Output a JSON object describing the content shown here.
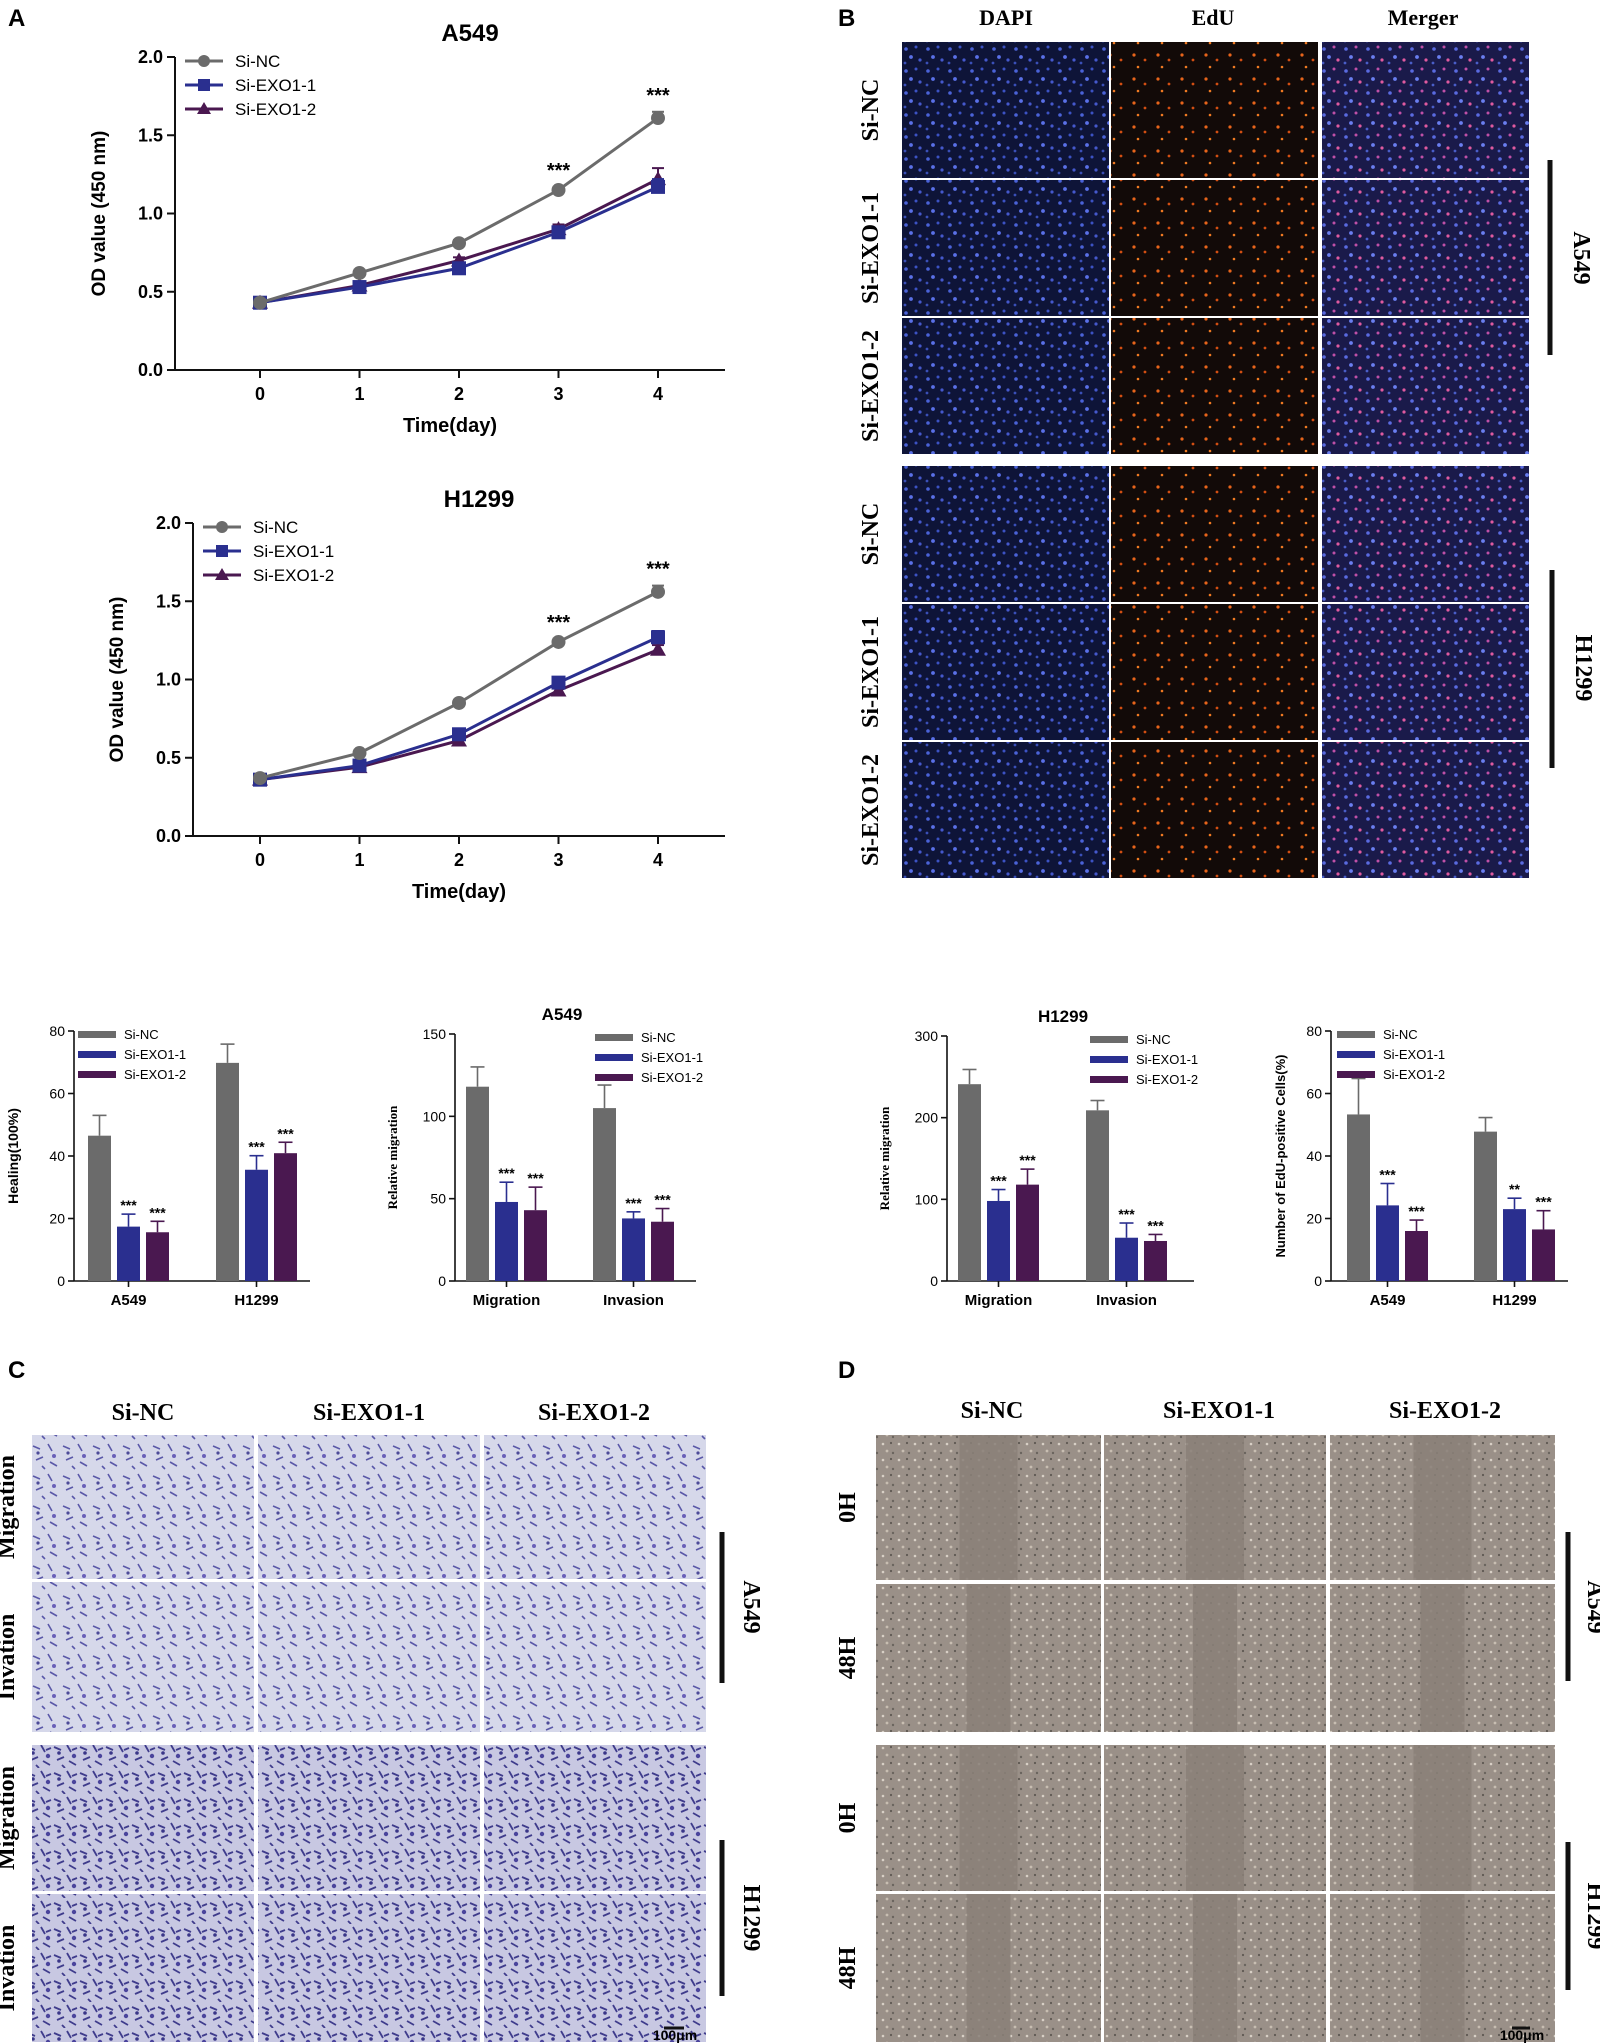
{
  "panel_letters": {
    "a": "A",
    "b": "B",
    "c": "C",
    "d": "D"
  },
  "colors": {
    "si_nc": "#6b6b6b",
    "si_exo1_1": "#2a2f8f",
    "si_exo1_2": "#4a1850",
    "axis": "#111111"
  },
  "legend_labels": [
    "Si-NC",
    "Si-EXO1-1",
    "Si-EXO1-2"
  ],
  "significance": {
    "three": "***",
    "two": "**"
  },
  "chart_data": [
    {
      "id": "growth-a549",
      "type": "line",
      "title": "A549",
      "xlabel": "Time(day)",
      "ylabel": "OD value (450 nm)",
      "x": [
        0,
        1,
        2,
        3,
        4
      ],
      "ylim": [
        0,
        2.0
      ],
      "yticks": [
        "0.0",
        "0.5",
        "1.0",
        "1.5",
        "2.0"
      ],
      "legend": "top-left",
      "series": [
        {
          "name": "Si-NC",
          "marker": "circle",
          "values": [
            0.43,
            0.62,
            0.81,
            1.15,
            1.61
          ],
          "errors": [
            0.02,
            0.02,
            0.02,
            0.02,
            0.04
          ]
        },
        {
          "name": "Si-EXO1-1",
          "marker": "square",
          "values": [
            0.43,
            0.53,
            0.65,
            0.88,
            1.17
          ],
          "errors": [
            0.02,
            0.02,
            0.02,
            0.03,
            0.05
          ]
        },
        {
          "name": "Si-EXO1-2",
          "marker": "triangle",
          "values": [
            0.43,
            0.54,
            0.7,
            0.9,
            1.22
          ],
          "errors": [
            0.02,
            0.02,
            0.02,
            0.03,
            0.07
          ]
        }
      ],
      "annotations": [
        {
          "x": 3,
          "text": "***"
        },
        {
          "x": 4,
          "text": "***"
        }
      ]
    },
    {
      "id": "growth-h1299",
      "type": "line",
      "title": "H1299",
      "xlabel": "Time(day)",
      "ylabel": "OD value (450 nm)",
      "x": [
        0,
        1,
        2,
        3,
        4
      ],
      "ylim": [
        0,
        2.0
      ],
      "yticks": [
        "0.0",
        "0.5",
        "1.0",
        "1.5",
        "2.0"
      ],
      "legend": "top-left",
      "series": [
        {
          "name": "Si-NC",
          "marker": "circle",
          "values": [
            0.37,
            0.53,
            0.85,
            1.24,
            1.56
          ],
          "errors": [
            0.02,
            0.02,
            0.02,
            0.02,
            0.04
          ]
        },
        {
          "name": "Si-EXO1-1",
          "marker": "square",
          "values": [
            0.36,
            0.45,
            0.65,
            0.98,
            1.27
          ],
          "errors": [
            0.02,
            0.02,
            0.02,
            0.02,
            0.04
          ]
        },
        {
          "name": "Si-EXO1-2",
          "marker": "triangle",
          "values": [
            0.36,
            0.44,
            0.61,
            0.93,
            1.19
          ],
          "errors": [
            0.02,
            0.02,
            0.02,
            0.02,
            0.03
          ]
        }
      ],
      "annotations": [
        {
          "x": 3,
          "text": "***"
        },
        {
          "x": 4,
          "text": "***"
        }
      ]
    },
    {
      "id": "bar-healing",
      "type": "bar",
      "title": "",
      "xlabel": "",
      "ylabel": "Healing(100%)",
      "categories": [
        "A549",
        "H1299"
      ],
      "ylim": [
        0,
        80
      ],
      "yticks": [
        "0",
        "20",
        "40",
        "60",
        "80"
      ],
      "legend": "top-right",
      "series": [
        {
          "name": "Si-NC",
          "values": [
            46.5,
            69.8
          ],
          "errors": [
            6.5,
            6.0
          ],
          "sig": [
            "",
            ""
          ]
        },
        {
          "name": "Si-EXO1-1",
          "values": [
            17.4,
            35.6
          ],
          "errors": [
            4.0,
            4.5
          ],
          "sig": [
            "***",
            "***"
          ]
        },
        {
          "name": "Si-EXO1-2",
          "values": [
            15.6,
            40.9
          ],
          "errors": [
            3.5,
            3.5
          ],
          "sig": [
            "***",
            "***"
          ]
        }
      ]
    },
    {
      "id": "bar-a549-migration",
      "type": "bar",
      "title": "A549",
      "xlabel": "",
      "ylabel": "Relative migration",
      "categories": [
        "Migration",
        "Invasion"
      ],
      "ylim": [
        0,
        150
      ],
      "yticks": [
        "0",
        "50",
        "100",
        "150"
      ],
      "legend": "top-right",
      "series": [
        {
          "name": "Si-NC",
          "values": [
            118,
            105
          ],
          "errors": [
            12,
            14
          ],
          "sig": [
            "",
            ""
          ]
        },
        {
          "name": "Si-EXO1-1",
          "values": [
            48,
            38
          ],
          "errors": [
            12,
            4
          ],
          "sig": [
            "***",
            "***"
          ]
        },
        {
          "name": "Si-EXO1-2",
          "values": [
            43,
            36
          ],
          "errors": [
            14,
            8
          ],
          "sig": [
            "***",
            "***"
          ]
        }
      ]
    },
    {
      "id": "bar-h1299-migration",
      "type": "bar",
      "title": "H1299",
      "xlabel": "",
      "ylabel": "Relative migration",
      "categories": [
        "Migration",
        "Invasion"
      ],
      "ylim": [
        0,
        300
      ],
      "yticks": [
        "0",
        "100",
        "200",
        "300"
      ],
      "legend": "top-right",
      "series": [
        {
          "name": "Si-NC",
          "values": [
            241,
            209
          ],
          "errors": [
            18,
            12
          ],
          "sig": [
            "",
            ""
          ]
        },
        {
          "name": "Si-EXO1-1",
          "values": [
            98,
            53
          ],
          "errors": [
            14,
            18
          ],
          "sig": [
            "***",
            "***"
          ]
        },
        {
          "name": "Si-EXO1-2",
          "values": [
            118,
            49
          ],
          "errors": [
            19,
            8
          ],
          "sig": [
            "***",
            "***"
          ]
        }
      ]
    },
    {
      "id": "bar-edu",
      "type": "bar",
      "title": "",
      "xlabel": "",
      "ylabel": "Number of EdU-positive Cells(%)",
      "categories": [
        "A549",
        "H1299"
      ],
      "ylim": [
        0,
        80
      ],
      "yticks": [
        "0",
        "20",
        "40",
        "60",
        "80"
      ],
      "legend": "top-right",
      "series": [
        {
          "name": "Si-NC",
          "values": [
            53.3,
            47.8
          ],
          "errors": [
            11.5,
            4.5
          ],
          "sig": [
            "",
            ""
          ]
        },
        {
          "name": "Si-EXO1-1",
          "values": [
            24.2,
            23.0
          ],
          "errors": [
            7.0,
            3.5
          ],
          "sig": [
            "***",
            "**"
          ]
        },
        {
          "name": "Si-EXO1-2",
          "values": [
            16.0,
            16.5
          ],
          "errors": [
            3.5,
            6.0
          ],
          "sig": [
            "***",
            "***"
          ]
        }
      ]
    }
  ],
  "panel_b": {
    "columns": [
      "DAPI",
      "EdU",
      "Merger"
    ],
    "rows": [
      "Si-NC",
      "Si-EXO1-1",
      "Si-EXO1-2"
    ],
    "groups": [
      "A549",
      "H1299"
    ]
  },
  "panel_c": {
    "columns": [
      "Si-NC",
      "Si-EXO1-1",
      "Si-EXO1-2"
    ],
    "rows": [
      "Migration",
      "Invation"
    ],
    "groups": [
      "A549",
      "H1299"
    ],
    "scale_bar": "100μm"
  },
  "panel_d": {
    "columns": [
      "Si-NC",
      "Si-EXO1-1",
      "Si-EXO1-2"
    ],
    "rows": [
      "0H",
      "48H"
    ],
    "groups": [
      "A549",
      "H1299"
    ],
    "scale_bar": "100μm"
  }
}
